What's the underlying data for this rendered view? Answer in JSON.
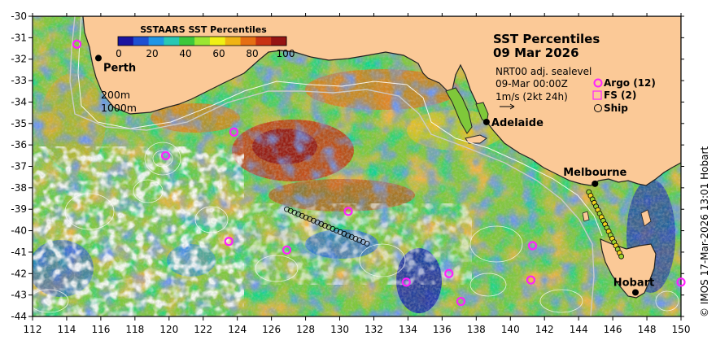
{
  "map": {
    "title_line1": "SST Percentiles",
    "title_line2": "09 Mar 2026",
    "info_line1": "NRT00 adj. sealevel",
    "info_line2": "09-Mar 00:00Z",
    "info_line3": "1m/s (2kt 24h)",
    "contour_label_1": "200m",
    "contour_label_2": "1000m",
    "credit": "© IMOS 17-Mar-2026 13:01 Hobart"
  },
  "colorbar": {
    "title": "SSTAARS SST Percentiles",
    "ticks": [
      "0",
      "20",
      "40",
      "60",
      "80",
      "100"
    ],
    "colors": [
      "#1a14a0",
      "#1e50d2",
      "#1e96e6",
      "#28c8b4",
      "#3cc83c",
      "#9be632",
      "#f0f014",
      "#f0b414",
      "#e66e14",
      "#c83214",
      "#961414"
    ]
  },
  "legend": {
    "argo_label": "Argo (12)",
    "fs_label": "FS (2)",
    "ship_label": "Ship",
    "argo_color": "#ff22ff",
    "fs_color": "#ff22ff"
  },
  "cities": [
    {
      "name": "Perth",
      "lon": 115.86,
      "lat": -31.95
    },
    {
      "name": "Adelaide",
      "lon": 138.6,
      "lat": -34.93
    },
    {
      "name": "Melbourne",
      "lon": 144.96,
      "lat": -37.81
    },
    {
      "name": "Hobart",
      "lon": 147.33,
      "lat": -42.88
    }
  ],
  "axes": {
    "x_ticks": [
      "112",
      "114",
      "116",
      "118",
      "120",
      "122",
      "124",
      "126",
      "128",
      "130",
      "132",
      "134",
      "136",
      "138",
      "140",
      "142",
      "144",
      "146",
      "148",
      "150"
    ],
    "y_ticks": [
      "-30",
      "-31",
      "-32",
      "-33",
      "-34",
      "-35",
      "-36",
      "-37",
      "-38",
      "-39",
      "-40",
      "-41",
      "-42",
      "-43",
      "-44"
    ],
    "lon_range": [
      112,
      150
    ],
    "lat_range": [
      -44,
      -30
    ]
  },
  "argo_floats": [
    {
      "lon": 114.6,
      "lat": -31.3
    },
    {
      "lon": 123.8,
      "lat": -35.4
    },
    {
      "lon": 119.8,
      "lat": -36.5
    },
    {
      "lon": 130.5,
      "lat": -39.1
    },
    {
      "lon": 123.5,
      "lat": -40.5
    },
    {
      "lon": 126.9,
      "lat": -40.9
    },
    {
      "lon": 141.3,
      "lat": -40.7
    },
    {
      "lon": 136.4,
      "lat": -42.0
    },
    {
      "lon": 133.9,
      "lat": -42.4
    },
    {
      "lon": 141.2,
      "lat": -42.3
    },
    {
      "lon": 137.1,
      "lat": -43.3
    },
    {
      "lon": 150.0,
      "lat": -42.4
    }
  ],
  "fs_tracks": [
    {
      "from": [
        126.9,
        -39.0
      ],
      "to": [
        131.6,
        -40.6
      ]
    },
    {
      "from": [
        144.6,
        -38.2
      ],
      "to": [
        146.5,
        -41.2
      ]
    }
  ]
}
